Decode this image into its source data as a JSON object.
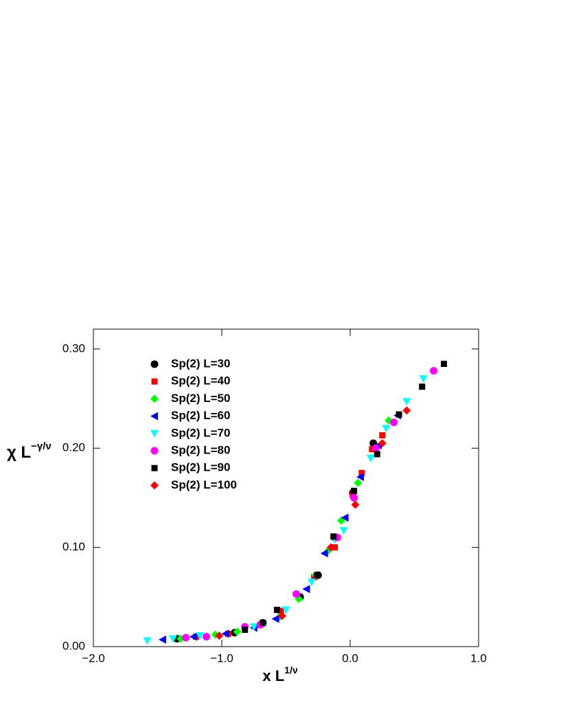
{
  "chart_data": {
    "type": "scatter",
    "x_label": "x L",
    "x_label_superscript": "1/ν",
    "y_label": "χ L",
    "y_label_superscript": "−γ/ν",
    "xlim": [
      -2.0,
      1.0
    ],
    "ylim": [
      0,
      0.32
    ],
    "xticks": [
      {
        "value": -2.0,
        "label": "−2.0"
      },
      {
        "value": -1.0,
        "label": "−1.0"
      },
      {
        "value": 0.0,
        "label": "0.0"
      },
      {
        "value": 1.0,
        "label": "1.0"
      }
    ],
    "yticks": [
      {
        "value": 0,
        "label": "0.00"
      },
      {
        "value": 0.1,
        "label": "0.10"
      },
      {
        "value": 0.2,
        "label": "0.20"
      },
      {
        "value": 0.3,
        "label": "0.30"
      }
    ],
    "legend": "upper left",
    "series": [
      {
        "name": "Sp(2) L=30",
        "color": "#000000",
        "marker": "circle",
        "x": [
          -1.35,
          -0.9,
          -0.68,
          -0.39,
          -0.25,
          -0.12,
          0.02,
          0.18
        ],
        "values": [
          0.008,
          0.014,
          0.024,
          0.05,
          0.072,
          0.11,
          0.155,
          0.205
        ]
      },
      {
        "name": "Sp(2) L=40",
        "color": "#ff0000",
        "marker": "square",
        "x": [
          -1.2,
          -0.95,
          -0.7,
          -0.54,
          -0.28,
          -0.12,
          0.02,
          0.09,
          0.17,
          0.25
        ],
        "values": [
          0.01,
          0.013,
          0.022,
          0.036,
          0.07,
          0.1,
          0.153,
          0.175,
          0.199,
          0.213
        ]
      },
      {
        "name": "Sp(2) L=50",
        "color": "#00ff00",
        "marker": "diamond",
        "x": [
          -1.32,
          -1.05,
          -0.88,
          -0.55,
          -0.4,
          -0.27,
          -0.17,
          -0.07,
          0.06,
          0.3
        ],
        "values": [
          0.008,
          0.012,
          0.015,
          0.03,
          0.048,
          0.072,
          0.097,
          0.127,
          0.165,
          0.228
        ]
      },
      {
        "name": "Sp(2) L=60",
        "color": "#0000ff",
        "marker": "triangle-left",
        "x": [
          -1.46,
          -1.22,
          -0.97,
          -0.75,
          -0.58,
          -0.34,
          -0.2,
          -0.04,
          0.08,
          0.22,
          0.37
        ],
        "values": [
          0.007,
          0.01,
          0.013,
          0.019,
          0.028,
          0.058,
          0.094,
          0.13,
          0.171,
          0.203,
          0.233
        ]
      },
      {
        "name": "Sp(2) L=70",
        "color": "#00ffff",
        "marker": "triangle-down",
        "x": [
          -1.58,
          -1.38,
          -1.17,
          -0.75,
          -0.5,
          -0.3,
          -0.12,
          -0.05,
          0.16,
          0.28,
          0.44,
          0.57
        ],
        "values": [
          0.006,
          0.008,
          0.011,
          0.02,
          0.037,
          0.065,
          0.108,
          0.117,
          0.19,
          0.22,
          0.247,
          0.27
        ]
      },
      {
        "name": "Sp(2) L=80",
        "color": "#ff00ff",
        "marker": "circle",
        "x": [
          -1.28,
          -1.12,
          -0.82,
          -0.7,
          -0.42,
          -0.1,
          0.03,
          0.2,
          0.34,
          0.65
        ],
        "values": [
          0.009,
          0.01,
          0.02,
          0.022,
          0.053,
          0.11,
          0.15,
          0.2,
          0.226,
          0.278
        ]
      },
      {
        "name": "Sp(2) L=90",
        "color": "#000000",
        "marker": "square",
        "x": [
          -0.82,
          -0.68,
          -0.57,
          -0.26,
          -0.13,
          0.03,
          0.21,
          0.38,
          0.56,
          0.73
        ],
        "values": [
          0.017,
          0.024,
          0.037,
          0.072,
          0.111,
          0.157,
          0.194,
          0.234,
          0.262,
          0.285
        ]
      },
      {
        "name": "Sp(2) L=100",
        "color": "#ff0000",
        "marker": "diamond",
        "x": [
          -1.02,
          -0.53,
          -0.15,
          0.04,
          0.25,
          0.44
        ],
        "values": [
          0.011,
          0.031,
          0.1,
          0.143,
          0.205,
          0.238
        ]
      }
    ]
  }
}
